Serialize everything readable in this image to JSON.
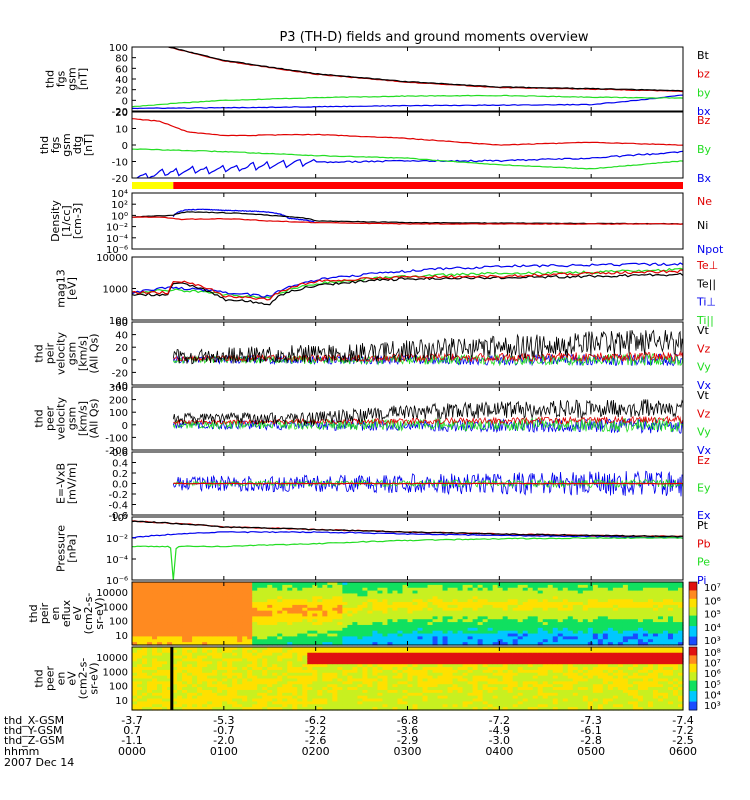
{
  "title": "P3 (TH-D) fields and ground moments overview",
  "date_label": "2007 Dec 14",
  "footer": {
    "row_labels": [
      "thd_X-GSM",
      "thd_Y-GSM",
      "thd_Z-GSM",
      "hhmm"
    ],
    "rows": [
      [
        "-3.7",
        "-5.3",
        "-6.2",
        "-6.8",
        "-7.2",
        "-7.3",
        "-7.4"
      ],
      [
        "0.7",
        "-0.7",
        "-2.2",
        "-3.6",
        "-4.9",
        "-6.1",
        "-7.2"
      ],
      [
        "-1.1",
        "-2.0",
        "-2.6",
        "-2.9",
        "-3.0",
        "-2.8",
        "-2.5"
      ],
      [
        "0000",
        "0100",
        "0200",
        "0300",
        "0400",
        "0500",
        "0600"
      ]
    ]
  },
  "colors": {
    "black": "#000000",
    "red": "#e00000",
    "green": "#22dd22",
    "blue": "#0000ee",
    "bar_yellow": "#ffff00",
    "bar_red": "#ff0000"
  },
  "chart_data": [
    {
      "type": "line",
      "ylabel": [
        "thd",
        "fgs",
        "gsm",
        "[nT]"
      ],
      "ylim": [
        -20,
        100
      ],
      "yticks": [
        "100",
        "80",
        "60",
        "40",
        "20",
        "0",
        "-20"
      ],
      "series": [
        {
          "name": "Bt",
          "color": "#000000",
          "x": [
            0.4,
            1,
            2,
            3,
            4,
            5,
            6
          ],
          "y": [
            100,
            75,
            50,
            35,
            25,
            22,
            18
          ]
        },
        {
          "name": "bz",
          "color": "#e00000",
          "x": [
            0.4,
            1,
            2,
            3,
            4,
            5,
            6
          ],
          "y": [
            100,
            74,
            49,
            34,
            24,
            21,
            17
          ]
        },
        {
          "name": "by",
          "color": "#22dd22",
          "x": [
            0,
            0.5,
            1,
            2,
            3,
            4,
            5,
            6
          ],
          "y": [
            -12,
            -5,
            0,
            5,
            8,
            9,
            6,
            4
          ]
        },
        {
          "name": "bx",
          "color": "#0000ee",
          "x": [
            0,
            1,
            2,
            3,
            4,
            5,
            5.5,
            6
          ],
          "y": [
            -15,
            -14,
            -12,
            -10,
            -9,
            -8,
            0,
            10
          ]
        }
      ]
    },
    {
      "type": "line",
      "ylabel": [
        "thd",
        "fgs",
        "gsm",
        "dtg",
        "[nT]"
      ],
      "ylim": [
        -25,
        25
      ],
      "yticks": [
        "20",
        "10",
        "0",
        "-10",
        "-20"
      ],
      "series": [
        {
          "name": "Bz",
          "color": "#e00000",
          "x": [
            0,
            0.3,
            0.6,
            1,
            2,
            3,
            4,
            5,
            6
          ],
          "y": [
            20,
            18,
            10,
            7,
            8,
            5,
            0,
            2,
            0
          ]
        },
        {
          "name": "By",
          "color": "#22dd22",
          "x": [
            0,
            1,
            2,
            3,
            4,
            5,
            5.5,
            6
          ],
          "y": [
            -3,
            -5,
            -8,
            -10,
            -15,
            -18,
            -15,
            -12
          ]
        },
        {
          "name": "Bx",
          "color": "#0000ee",
          "x": [
            0,
            0.5,
            1,
            1.5,
            2,
            3,
            4,
            5,
            6
          ],
          "y": [
            -25,
            -20,
            -18,
            -15,
            -13,
            -12,
            -12,
            -10,
            -5
          ]
        }
      ]
    },
    {
      "type": "line",
      "ylabel": [
        "Density",
        "[1/cc]",
        "[cm-3]"
      ],
      "ylim_log10": [
        -6,
        4
      ],
      "yticks": [
        "10⁴",
        "10²",
        "10⁰",
        "10⁻²",
        "10⁻⁴",
        "10⁻⁶"
      ],
      "series": [
        {
          "name": "Ne",
          "color": "#e00000",
          "x": [
            0,
            0.25,
            0.45,
            0.5,
            1,
            1.5,
            2,
            3,
            6
          ],
          "y": [
            0.5,
            0.5,
            0.3,
            0.2,
            0.25,
            0.1,
            0.05,
            0.03,
            0.03
          ]
        },
        {
          "name": "Ni",
          "color": "#000000",
          "x": [
            0,
            0.45,
            0.6,
            1,
            1.5,
            2,
            3,
            6
          ],
          "y": [
            0.5,
            1,
            4,
            3,
            1,
            0.1,
            0.05,
            0.03
          ]
        },
        {
          "name": "Npot",
          "color": "#0000ee",
          "x": [
            0.45,
            0.6,
            0.8,
            1,
            1.4,
            1.7,
            2
          ],
          "y": [
            0.5,
            10,
            12,
            8,
            5,
            0.3,
            0.05
          ]
        }
      ]
    },
    {
      "type": "line",
      "ylabel": [
        "mag13",
        "[eV]"
      ],
      "ylim_log10": [
        1.3,
        4
      ],
      "yticks": [
        "10000",
        "1000",
        "100"
      ],
      "series": [
        {
          "name": "Te⊥",
          "color": "#e00000",
          "x": [
            0,
            0.4,
            0.45,
            1,
            1.5,
            2,
            3,
            4,
            5,
            6
          ],
          "y": [
            300,
            300,
            1000,
            200,
            150,
            900,
            1400,
            1500,
            2000,
            2500
          ]
        },
        {
          "name": "Te||",
          "color": "#000000",
          "x": [
            0,
            0.4,
            0.45,
            1,
            1.5,
            2,
            3,
            4,
            5,
            6
          ],
          "y": [
            250,
            250,
            800,
            150,
            100,
            600,
            1200,
            1300,
            1500,
            1800
          ]
        },
        {
          "name": "Ti⊥",
          "color": "#0000ee",
          "x": [
            0,
            0.45,
            1,
            1.5,
            2,
            3,
            4,
            5,
            6
          ],
          "y": [
            300,
            500,
            300,
            200,
            1000,
            2500,
            4000,
            4500,
            5000
          ]
        },
        {
          "name": "Ti||",
          "color": "#22dd22",
          "x": [
            0,
            0.45,
            1,
            1.5,
            2,
            3,
            4,
            5,
            6
          ],
          "y": [
            280,
            400,
            250,
            180,
            700,
            1500,
            2000,
            2200,
            3000
          ]
        }
      ]
    },
    {
      "type": "line",
      "ylabel": [
        "thd",
        "peir",
        "velocity",
        "gsm",
        "[km/s]",
        "(All Qs)"
      ],
      "ylim": [
        -40,
        60
      ],
      "yticks": [
        "60",
        "40",
        "20",
        "0",
        "-20",
        "-40"
      ],
      "series": [
        {
          "name": "Vt",
          "color": "#000000",
          "x": [
            0.45,
            2,
            3,
            4,
            5,
            6
          ],
          "y": [
            5,
            10,
            15,
            20,
            25,
            30
          ]
        },
        {
          "name": "Vz",
          "color": "#e00000",
          "x": [
            0.45,
            6
          ],
          "y": [
            2,
            5
          ]
        },
        {
          "name": "Vy",
          "color": "#22dd22",
          "x": [
            0.45,
            6
          ],
          "y": [
            0,
            0
          ]
        },
        {
          "name": "Vx",
          "color": "#0000ee",
          "x": [
            0.45,
            6
          ],
          "y": [
            0,
            0
          ]
        }
      ]
    },
    {
      "type": "line",
      "ylabel": [
        "thd",
        "peer",
        "velocity",
        "gsm",
        "[km/s]",
        "(All Qs)"
      ],
      "ylim": [
        -200,
        300
      ],
      "yticks": [
        "300",
        "200",
        "100",
        "0",
        "-100",
        "-200"
      ],
      "series": [
        {
          "name": "Vt",
          "color": "#000000",
          "x": [
            0.45,
            2,
            3,
            4,
            5,
            6
          ],
          "y": [
            50,
            50,
            100,
            120,
            130,
            130
          ]
        },
        {
          "name": "Vz",
          "color": "#e00000",
          "x": [
            0.45,
            6
          ],
          "y": [
            20,
            40
          ]
        },
        {
          "name": "Vy",
          "color": "#22dd22",
          "x": [
            0.45,
            6
          ],
          "y": [
            0,
            0
          ]
        },
        {
          "name": "Vx",
          "color": "#0000ee",
          "x": [
            0.45,
            6
          ],
          "y": [
            0,
            -10
          ]
        }
      ]
    },
    {
      "type": "line",
      "ylabel": [
        "E=-VxB",
        "[mV/m]"
      ],
      "ylim": [
        -0.6,
        0.6
      ],
      "yticks": [
        "0.6",
        "0.4",
        "0.2",
        "0.0",
        "-0.2",
        "-0.4",
        "-0.6"
      ],
      "series": [
        {
          "name": "Ez",
          "color": "#e00000",
          "x": [
            0.45,
            6
          ],
          "y": [
            0,
            0
          ]
        },
        {
          "name": "Ey",
          "color": "#22dd22",
          "x": [
            0.45,
            6
          ],
          "y": [
            0,
            0
          ]
        },
        {
          "name": "Ex",
          "color": "#0000ee",
          "x": [
            0.45,
            6
          ],
          "y": [
            0,
            0
          ]
        }
      ]
    },
    {
      "type": "line",
      "ylabel": [
        "Pressure",
        "[nPa]"
      ],
      "ylim_log10": [
        -6,
        1.5
      ],
      "yticks": [
        "10⁰",
        "10⁻²",
        "10⁻⁴",
        "10⁻⁶"
      ],
      "series": [
        {
          "name": "Pt",
          "color": "#000000",
          "x": [
            0,
            0.5,
            1,
            2,
            3,
            4,
            5,
            6
          ],
          "y": [
            10,
            5,
            2,
            1,
            0.5,
            0.3,
            0.2,
            0.15
          ]
        },
        {
          "name": "Pb",
          "color": "#e00000",
          "x": [
            0,
            0.5,
            1,
            2,
            3,
            4,
            5,
            6
          ],
          "y": [
            10,
            5,
            2,
            1,
            0.5,
            0.3,
            0.2,
            0.15
          ]
        },
        {
          "name": "Pe",
          "color": "#22dd22",
          "x": [
            0,
            0.4,
            0.45,
            0.5,
            1,
            2,
            3,
            4,
            5,
            6
          ],
          "y": [
            0.01,
            0.01,
            1e-06,
            0.01,
            0.01,
            0.02,
            0.05,
            0.08,
            0.1,
            0.1
          ]
        },
        {
          "name": "Pi",
          "color": "#0000ee",
          "x": [
            0,
            0.5,
            1,
            2,
            3,
            4,
            5,
            6
          ],
          "y": [
            0.1,
            0.3,
            0.5,
            0.5,
            0.3,
            0.2,
            0.15,
            0.1
          ]
        }
      ]
    },
    {
      "type": "heatmap",
      "ylabel": [
        "thd",
        "peir",
        "en",
        "eflux",
        "eV",
        "(cm2-s-",
        "sr-eV)"
      ],
      "yticks": [
        "10000",
        "1000",
        "100",
        "10"
      ],
      "colorbar_ticks": [
        "10⁷",
        "10⁶",
        "10⁵",
        "10⁴",
        "10³"
      ]
    },
    {
      "type": "heatmap",
      "ylabel": [
        "thd",
        "peer",
        "en",
        "eV",
        "(cm2-s-",
        "sr-eV)"
      ],
      "yticks": [
        "10000",
        "1000",
        "100",
        "10"
      ],
      "colorbar_ticks": [
        "10⁸",
        "10⁷",
        "10⁶",
        "10⁵",
        "10⁴",
        "10³"
      ]
    }
  ]
}
